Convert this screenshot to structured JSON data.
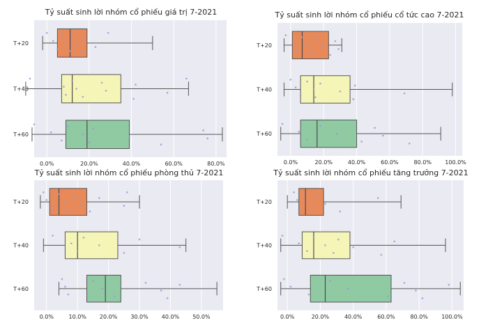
{
  "colors": {
    "background": "#eaeaf2",
    "grid": "#ffffff",
    "whisker": "#555555",
    "median": "#4a4a4a",
    "points": "#9a9ad6",
    "box_t20": "#e8895a",
    "box_t40": "#f5f5b8",
    "box_t60": "#8fcaa3"
  },
  "chart_data": [
    {
      "type": "boxplot",
      "orientation": "horizontal",
      "title": "Tỷ suất sinh lời nhóm cổ phiếu giá trị 7-2021",
      "categories": [
        "T+20",
        "T+40",
        "T+60"
      ],
      "xlim": [
        -0.06,
        0.85
      ],
      "xticks": [
        0.0,
        0.2,
        0.4,
        0.6,
        0.8
      ],
      "tick_labels": [
        "0.0%",
        "20.0%",
        "40.0%",
        "60.0%",
        "80.0%"
      ],
      "grid": true,
      "boxes": [
        {
          "name": "T+20",
          "whisker_low": -0.02,
          "q1": 0.05,
          "median": 0.11,
          "q3": 0.19,
          "whisker_high": 0.5,
          "points": [
            0.0,
            0.03,
            0.05,
            0.07,
            0.09,
            0.11,
            0.12,
            0.14,
            0.16,
            0.18,
            0.23,
            0.29
          ]
        },
        {
          "name": "T+40",
          "whisker_low": -0.1,
          "q1": 0.07,
          "median": 0.12,
          "q3": 0.35,
          "whisker_high": 0.67,
          "points": [
            -0.08,
            0.08,
            0.09,
            0.12,
            0.14,
            0.17,
            0.26,
            0.28,
            0.41,
            0.42,
            0.57,
            0.66
          ]
        },
        {
          "name": "T+60",
          "whisker_low": -0.07,
          "q1": 0.09,
          "median": 0.19,
          "q3": 0.39,
          "whisker_high": 0.83,
          "points": [
            -0.06,
            0.02,
            0.07,
            0.1,
            0.17,
            0.2,
            0.22,
            0.39,
            0.54,
            0.74,
            0.76
          ]
        }
      ]
    },
    {
      "type": "boxplot",
      "orientation": "horizontal",
      "title": "Tỷ suất sinh lời nhóm cổ phiếu cổ tức cao 7-2021",
      "categories": [
        "T+20",
        "T+40",
        "T+60"
      ],
      "xlim": [
        -0.08,
        1.04
      ],
      "xticks": [
        0.0,
        0.2,
        0.4,
        0.6,
        0.8,
        1.0
      ],
      "tick_labels": [
        "0.0%",
        "20.0%",
        "40.0%",
        "60.0%",
        "80.0%",
        "100.0%"
      ],
      "grid": true,
      "boxes": [
        {
          "name": "T+20",
          "whisker_low": -0.04,
          "q1": 0.01,
          "median": 0.07,
          "q3": 0.23,
          "whisker_high": 0.31,
          "points": [
            -0.03,
            0.02,
            0.04,
            0.07,
            0.1,
            0.13,
            0.16,
            0.19,
            0.24,
            0.27,
            0.29
          ]
        },
        {
          "name": "T+40",
          "whisker_low": -0.04,
          "q1": 0.06,
          "median": 0.14,
          "q3": 0.36,
          "whisker_high": 0.98,
          "points": [
            0.0,
            0.03,
            0.06,
            0.1,
            0.14,
            0.15,
            0.18,
            0.3,
            0.38,
            0.39,
            0.69
          ]
        },
        {
          "name": "T+60",
          "whisker_low": -0.06,
          "q1": 0.06,
          "median": 0.16,
          "q3": 0.4,
          "whisker_high": 0.91,
          "points": [
            -0.05,
            0.05,
            0.1,
            0.18,
            0.28,
            0.43,
            0.51,
            0.56,
            0.72
          ]
        }
      ]
    },
    {
      "type": "boxplot",
      "orientation": "horizontal",
      "title": "Tỷ suất sinh lời nhóm cổ phiếu phòng thủ 7-2021",
      "categories": [
        "T+20",
        "T+40",
        "T+60"
      ],
      "xlim": [
        -0.04,
        0.57
      ],
      "xticks": [
        0.0,
        0.1,
        0.2,
        0.3,
        0.4,
        0.5
      ],
      "tick_labels": [
        "0.0%",
        "10.0%",
        "20.0%",
        "30.0%",
        "40.0%",
        "50.0%"
      ],
      "grid": true,
      "boxes": [
        {
          "name": "T+20",
          "whisker_low": -0.02,
          "q1": 0.01,
          "median": 0.04,
          "q3": 0.13,
          "whisker_high": 0.3,
          "points": [
            -0.01,
            0.0,
            0.02,
            0.04,
            0.06,
            0.07,
            0.09,
            0.11,
            0.14,
            0.17,
            0.25,
            0.26
          ]
        },
        {
          "name": "T+40",
          "whisker_low": -0.01,
          "q1": 0.06,
          "median": 0.1,
          "q3": 0.23,
          "whisker_high": 0.45,
          "points": [
            0.02,
            0.08,
            0.1,
            0.12,
            0.17,
            0.25,
            0.3,
            0.43
          ]
        },
        {
          "name": "T+60",
          "whisker_low": 0.04,
          "q1": 0.13,
          "median": 0.19,
          "q3": 0.24,
          "whisker_high": 0.55,
          "points": [
            0.05,
            0.06,
            0.07,
            0.15,
            0.18,
            0.22,
            0.32,
            0.37,
            0.39,
            0.43
          ]
        }
      ]
    },
    {
      "type": "boxplot",
      "orientation": "horizontal",
      "title": "Tỷ suất sinh lời nhóm cổ phiếu tăng trưởng 7-2021",
      "categories": [
        "T+20",
        "T+40",
        "T+60"
      ],
      "xlim": [
        -0.06,
        1.07
      ],
      "xticks": [
        0.0,
        0.2,
        0.4,
        0.6,
        0.8,
        1.0
      ],
      "tick_labels": [
        "0.0%",
        "20.0%",
        "40.0%",
        "60.0%",
        "80.0%",
        "100.0%"
      ],
      "grid": true,
      "boxes": [
        {
          "name": "T+20",
          "whisker_low": 0.0,
          "q1": 0.07,
          "median": 0.11,
          "q3": 0.22,
          "whisker_high": 0.69,
          "points": [
            0.04,
            0.06,
            0.08,
            0.1,
            0.12,
            0.15,
            0.18,
            0.23,
            0.32,
            0.55
          ]
        },
        {
          "name": "T+40",
          "whisker_low": -0.04,
          "q1": 0.09,
          "median": 0.16,
          "q3": 0.38,
          "whisker_high": 0.96,
          "points": [
            -0.03,
            0.07,
            0.12,
            0.16,
            0.23,
            0.28,
            0.31,
            0.4,
            0.57,
            0.65
          ]
        },
        {
          "name": "T+60",
          "whisker_low": -0.04,
          "q1": 0.14,
          "median": 0.23,
          "q3": 0.63,
          "whisker_high": 1.05,
          "points": [
            -0.02,
            0.02,
            0.13,
            0.26,
            0.37,
            0.61,
            0.71,
            0.78,
            0.82,
            0.98
          ]
        }
      ]
    }
  ]
}
